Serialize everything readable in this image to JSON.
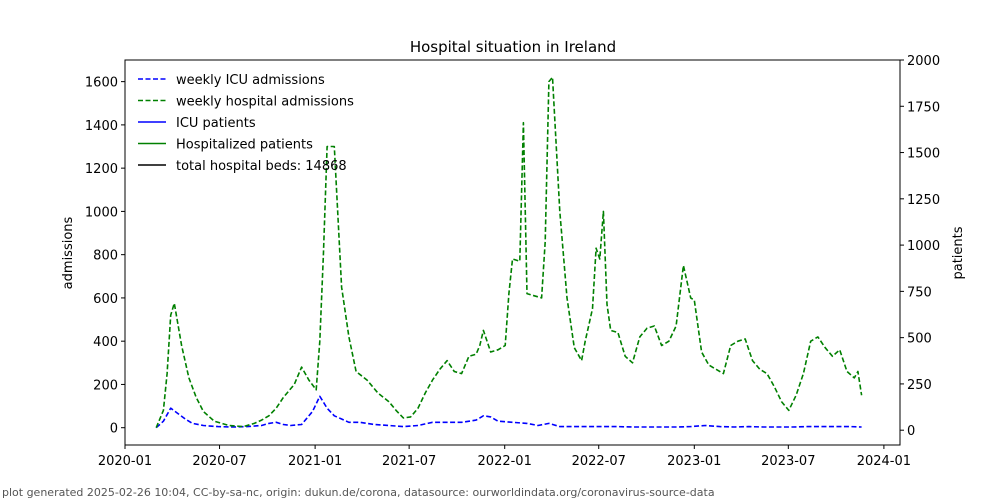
{
  "chart_data": {
    "type": "line",
    "title": "Hospital situation in Ireland",
    "ylabel": "admissions",
    "y2label": "patients",
    "xlim": [
      "2020-01-01",
      "2024-02-01"
    ],
    "ylim": [
      -80,
      1700
    ],
    "y2lim": [
      -80,
      2000
    ],
    "x_ticks": [
      "2020-01",
      "2020-07",
      "2021-01",
      "2021-07",
      "2022-01",
      "2022-07",
      "2023-01",
      "2023-07",
      "2024-01"
    ],
    "y_ticks": [
      0,
      200,
      400,
      600,
      800,
      1000,
      1200,
      1400,
      1600
    ],
    "y2_ticks": [
      0,
      250,
      500,
      750,
      1000,
      1250,
      1500,
      1750,
      2000
    ],
    "legend_position": "top-left",
    "series": [
      {
        "name": "weekly ICU admissions",
        "style": "dashed",
        "color": "#0000ff",
        "axis": "left",
        "x": [
          "2020-03-01",
          "2020-03-15",
          "2020-03-29",
          "2020-04-12",
          "2020-04-26",
          "2020-05-10",
          "2020-05-31",
          "2020-06-28",
          "2020-07-26",
          "2020-08-23",
          "2020-09-20",
          "2020-10-04",
          "2020-10-18",
          "2020-11-01",
          "2020-11-15",
          "2020-12-06",
          "2020-12-27",
          "2021-01-10",
          "2021-01-24",
          "2021-02-07",
          "2021-02-21",
          "2021-03-07",
          "2021-03-28",
          "2021-04-25",
          "2021-05-23",
          "2021-06-20",
          "2021-07-18",
          "2021-08-15",
          "2021-09-12",
          "2021-10-10",
          "2021-11-07",
          "2021-11-21",
          "2021-12-05",
          "2021-12-19",
          "2022-01-16",
          "2022-02-13",
          "2022-03-06",
          "2022-03-27",
          "2022-04-17",
          "2022-05-15",
          "2022-06-12",
          "2022-07-10",
          "2022-08-07",
          "2022-09-04",
          "2022-10-02",
          "2022-10-30",
          "2022-11-27",
          "2022-12-25",
          "2023-01-22",
          "2023-02-19",
          "2023-03-19",
          "2023-04-16",
          "2023-05-14",
          "2023-06-11",
          "2023-07-09",
          "2023-08-06",
          "2023-09-03",
          "2023-10-01",
          "2023-10-29",
          "2023-11-19"
        ],
        "values": [
          0,
          30,
          90,
          65,
          40,
          20,
          10,
          5,
          3,
          5,
          10,
          20,
          25,
          15,
          10,
          15,
          75,
          145,
          90,
          55,
          40,
          25,
          25,
          15,
          10,
          5,
          10,
          25,
          25,
          25,
          35,
          55,
          50,
          30,
          25,
          20,
          10,
          20,
          5,
          5,
          5,
          5,
          5,
          3,
          3,
          3,
          3,
          5,
          10,
          5,
          3,
          5,
          3,
          3,
          3,
          5,
          5,
          5,
          5,
          3
        ]
      },
      {
        "name": "weekly hospital admissions",
        "style": "dashed",
        "color": "#008000",
        "axis": "left",
        "x": [
          "2020-03-01",
          "2020-03-15",
          "2020-03-22",
          "2020-03-29",
          "2020-04-05",
          "2020-04-19",
          "2020-05-03",
          "2020-05-17",
          "2020-05-31",
          "2020-06-21",
          "2020-07-19",
          "2020-08-16",
          "2020-09-06",
          "2020-09-20",
          "2020-10-04",
          "2020-10-18",
          "2020-11-01",
          "2020-11-22",
          "2020-12-06",
          "2020-12-20",
          "2021-01-03",
          "2021-01-10",
          "2021-01-17",
          "2021-01-24",
          "2021-02-07",
          "2021-02-21",
          "2021-03-07",
          "2021-03-21",
          "2021-04-11",
          "2021-05-02",
          "2021-05-23",
          "2021-06-06",
          "2021-06-20",
          "2021-07-04",
          "2021-07-18",
          "2021-08-01",
          "2021-08-15",
          "2021-08-29",
          "2021-09-12",
          "2021-09-26",
          "2021-10-10",
          "2021-10-24",
          "2021-11-07",
          "2021-11-14",
          "2021-11-21",
          "2021-12-05",
          "2021-12-19",
          "2022-01-02",
          "2022-01-09",
          "2022-01-16",
          "2022-01-30",
          "2022-02-06",
          "2022-02-13",
          "2022-02-27",
          "2022-03-13",
          "2022-03-20",
          "2022-03-27",
          "2022-04-03",
          "2022-04-17",
          "2022-05-01",
          "2022-05-15",
          "2022-05-29",
          "2022-06-05",
          "2022-06-19",
          "2022-06-26",
          "2022-07-03",
          "2022-07-10",
          "2022-07-17",
          "2022-07-24",
          "2022-08-07",
          "2022-08-21",
          "2022-09-04",
          "2022-09-18",
          "2022-10-02",
          "2022-10-16",
          "2022-10-30",
          "2022-11-13",
          "2022-11-27",
          "2022-12-11",
          "2022-12-25",
          "2023-01-01",
          "2023-01-15",
          "2023-01-29",
          "2023-02-12",
          "2023-02-26",
          "2023-03-12",
          "2023-03-26",
          "2023-04-09",
          "2023-04-23",
          "2023-05-07",
          "2023-05-21",
          "2023-06-04",
          "2023-06-18",
          "2023-07-02",
          "2023-07-16",
          "2023-07-30",
          "2023-08-13",
          "2023-08-27",
          "2023-09-10",
          "2023-09-24",
          "2023-10-08",
          "2023-10-22",
          "2023-11-05",
          "2023-11-12",
          "2023-11-19"
        ],
        "values": [
          0,
          80,
          250,
          520,
          575,
          380,
          230,
          140,
          75,
          30,
          10,
          5,
          20,
          35,
          55,
          90,
          140,
          200,
          280,
          220,
          175,
          400,
          800,
          1300,
          1300,
          650,
          420,
          260,
          220,
          160,
          120,
          80,
          45,
          50,
          90,
          160,
          220,
          270,
          310,
          260,
          250,
          330,
          340,
          380,
          450,
          350,
          360,
          380,
          620,
          780,
          770,
          1410,
          620,
          610,
          600,
          860,
          1600,
          1620,
          1000,
          600,
          370,
          310,
          400,
          550,
          830,
          780,
          1000,
          570,
          450,
          440,
          330,
          300,
          420,
          460,
          470,
          380,
          400,
          470,
          750,
          600,
          590,
          350,
          290,
          270,
          250,
          380,
          400,
          410,
          310,
          270,
          250,
          190,
          120,
          80,
          150,
          250,
          400,
          420,
          370,
          330,
          360,
          260,
          230,
          260,
          150
        ]
      },
      {
        "name": "ICU patients",
        "style": "solid",
        "color": "#0000ff",
        "axis": "right",
        "x": [],
        "values": []
      },
      {
        "name": "Hospitalized patients",
        "style": "solid",
        "color": "#008000",
        "axis": "right",
        "x": [],
        "values": []
      },
      {
        "name": "total hospital beds: 14868",
        "style": "solid",
        "color": "#000000",
        "axis": "right",
        "x": [],
        "values": []
      }
    ]
  },
  "footer": "plot generated 2025-02-26 10:04, CC-by-sa-nc, origin: dukun.de/corona, datasource: ourworldindata.org/coronavirus-source-data"
}
